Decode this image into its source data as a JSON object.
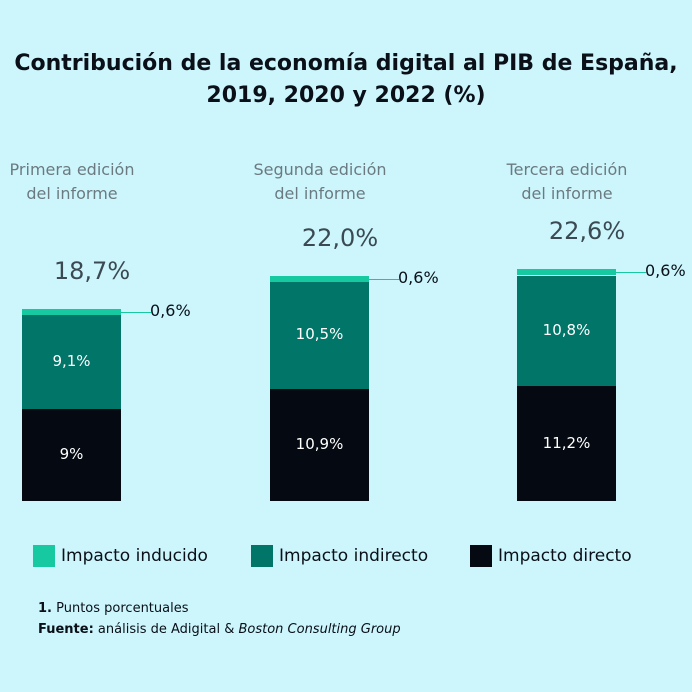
{
  "title_line1": "Contribución de la economía digital al PIB de España,",
  "title_line2": "2019, 2020 y 2022 (%)",
  "colors": {
    "background": "#ccf6fc",
    "induced": "#17c9a0",
    "indirect": "#007568",
    "direct": "#050a12"
  },
  "chart_data": {
    "type": "bar",
    "stacked": true,
    "categories": [
      "Primera edición del informe",
      "Segunda edición del informe",
      "Tercera edición del informe"
    ],
    "category_lines": [
      [
        "Primera edición",
        "del informe"
      ],
      [
        "Segunda edición",
        "del informe"
      ],
      [
        "Tercera edición",
        "del informe"
      ]
    ],
    "totals": [
      "18,7%",
      "22,0%",
      "22,6%"
    ],
    "series": [
      {
        "name": "Impacto directo",
        "values": [
          9,
          10.9,
          11.2
        ],
        "labels": [
          "9%",
          "10,9%",
          "11,2%"
        ],
        "color": "#050a12"
      },
      {
        "name": "Impacto indirecto",
        "values": [
          9.1,
          10.5,
          10.8
        ],
        "labels": [
          "9,1%",
          "10,5%",
          "10,8%"
        ],
        "color": "#007568"
      },
      {
        "name": "Impacto inducido",
        "values": [
          0.6,
          0.6,
          0.6
        ],
        "labels": [
          "0,6%",
          "0,6%",
          "0,6%"
        ],
        "color": "#17c9a0"
      }
    ],
    "legend": [
      "Impacto inducido",
      "Impacto indirecto",
      "Impacto directo"
    ],
    "legend_placement": "bottom"
  },
  "notes": {
    "note1_bold": "1.",
    "note1_text": " Puntos porcentuales",
    "source_bold": "Fuente:",
    "source_text": " análisis de Adigital & ",
    "source_italic": "Boston Consulting Group"
  }
}
